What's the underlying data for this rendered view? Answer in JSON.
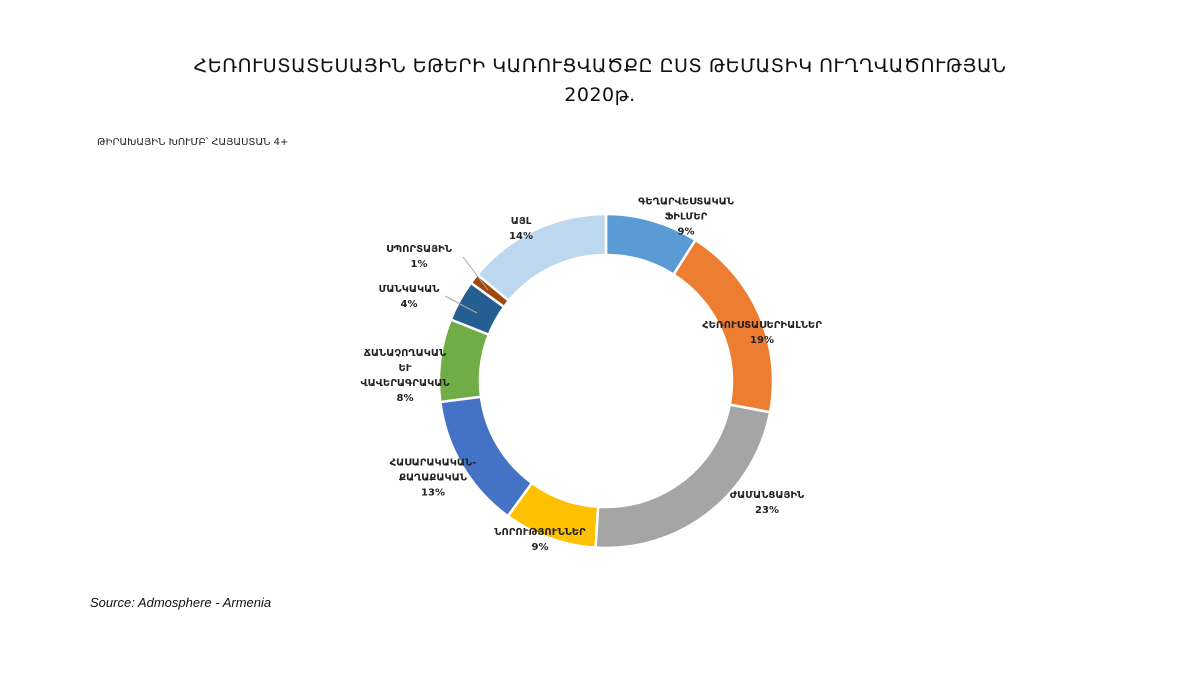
{
  "chart_data": {
    "type": "pie",
    "variant": "donut",
    "title": "ՀԵՌՈՒՍՏԱՏԵՍԱՅԻՆ ԵԹԵՐԻ ԿԱՌՈՒՑՎԱԾՔԸ ԸՍՏ ԹԵՄԱՏԻԿ ՈՒՂՂՎԱԾՈՒԹՅԱՆ",
    "title_year": "2020թ.",
    "subtitle": "ԹԻՐԱԽԱՅԻՆ ԽՈՒՄԲ՝ ՀԱՅԱՍՏԱՆ 4+",
    "source": "Source: Admosphere - Armenia",
    "unit": "%",
    "slices": [
      {
        "label": [
          "ԳԵՂԱՐՎԵՍՏԱԿԱՆ",
          "ՖԻԼՄԵՐ"
        ],
        "value": 9,
        "color": "#5B9BD5"
      },
      {
        "label": [
          "ՀԵՌՈՒՍՏԱՍԵՐԻԱԼՆԵՐ"
        ],
        "value": 19,
        "color": "#ED7D31"
      },
      {
        "label": [
          "ԺԱՄԱՆՑԱՅԻՆ"
        ],
        "value": 23,
        "color": "#A5A5A5"
      },
      {
        "label": [
          "ՆՈՐՈՒԹՅՈՒՆՆԵՐ"
        ],
        "value": 9,
        "color": "#FFC000"
      },
      {
        "label": [
          "ՀԱՍԱՐԱԿԱԿԱՆ-",
          "ՔԱՂԱՔԱԿԱՆ"
        ],
        "value": 13,
        "color": "#4472C4"
      },
      {
        "label": [
          "ՃԱՆԱՉՈՂԱԿԱՆ",
          "ԵՒ",
          "ՎԱՎԵՐԱԳՐԱԿԱՆ"
        ],
        "value": 8,
        "color": "#70AD47"
      },
      {
        "label": [
          "ՄԱՆԿԱԿԱՆ"
        ],
        "value": 4,
        "color": "#255E91"
      },
      {
        "label": [
          "ՍՊՈՐՏԱՅԻՆ"
        ],
        "value": 1,
        "color": "#9E480E"
      },
      {
        "label": [
          "ԱՅԼ"
        ],
        "value": 14,
        "color": "#BDD7EE"
      }
    ]
  }
}
